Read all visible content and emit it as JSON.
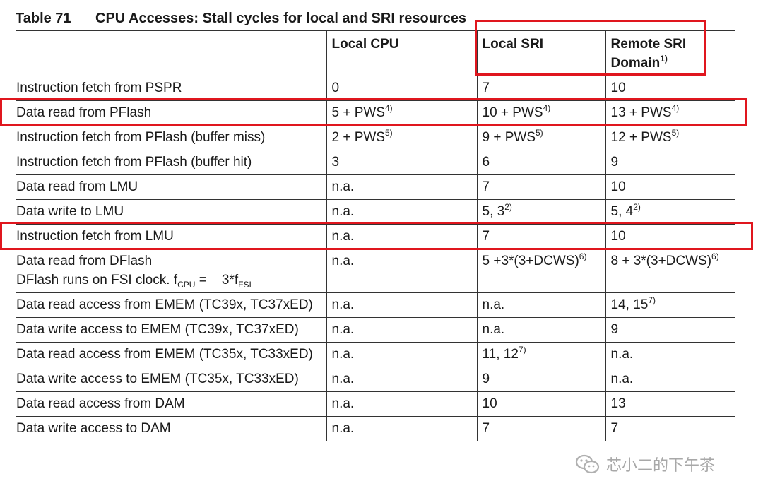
{
  "caption": {
    "table_id": "Table 71",
    "title": "CPU Accesses: Stall cycles for local and SRI resources"
  },
  "table": {
    "headers": {
      "col0": "",
      "col1": "Local CPU",
      "col2": "Local SRI",
      "col3_line1": "Remote SRI",
      "col3_line2": "Domain",
      "col3_footnote": "1)"
    },
    "rows": [
      {
        "c0": "Instruction fetch from PSPR",
        "c1": "0",
        "c2": "7",
        "c3": "10",
        "c1_fn": "",
        "c2_fn": "",
        "c3_fn": ""
      },
      {
        "c0": "Data read from PFlash",
        "c1": "5 + PWS",
        "c1_fn": "4)",
        "c2": "10 + PWS",
        "c2_fn": "4)",
        "c3": "13 + PWS",
        "c3_fn": "4)"
      },
      {
        "c0": "Instruction fetch from PFlash (buffer miss)",
        "c1": "2 + PWS",
        "c1_fn": "5)",
        "c2": "9 + PWS",
        "c2_fn": "5)",
        "c3": "12 + PWS",
        "c3_fn": "5)"
      },
      {
        "c0": "Instruction fetch from PFlash (buffer hit)",
        "c1": "3",
        "c1_fn": "",
        "c2": "6",
        "c2_fn": "",
        "c3": "9",
        "c3_fn": ""
      },
      {
        "c0": "Data read from LMU",
        "c1": "n.a.",
        "c1_fn": "",
        "c2": "7",
        "c2_fn": "",
        "c3": "10",
        "c3_fn": ""
      },
      {
        "c0": "Data write to LMU",
        "c1": "n.a.",
        "c1_fn": "",
        "c2": "5, 3",
        "c2_fn": "2)",
        "c3": "5, 4",
        "c3_fn": "2)"
      },
      {
        "c0": "Instruction fetch from LMU",
        "c1": "n.a.",
        "c1_fn": "",
        "c2": "7",
        "c2_fn": "",
        "c3": "10",
        "c3_fn": ""
      },
      {
        "c0": "Data read from DFlash",
        "c0_line2": {
          "text_a": "DFlash runs on FSI clock. f",
          "sub_a": "CPU",
          "text_b": " =    3*f",
          "sub_b": "FSI"
        },
        "c1": "n.a.",
        "c1_fn": "",
        "c2": "5 +3*(3+DCWS)",
        "c2_fn": "6)",
        "c3": "8 + 3*(3+DCWS)",
        "c3_fn": "6)"
      },
      {
        "c0": "Data read access from EMEM (TC39x, TC37xED)",
        "c1": "n.a.",
        "c1_fn": "",
        "c2": "n.a.",
        "c2_fn": "",
        "c3": "14, 15",
        "c3_fn": "7)"
      },
      {
        "c0": "Data write access to EMEM (TC39x, TC37xED)",
        "c1": "n.a.",
        "c1_fn": "",
        "c2": "n.a.",
        "c2_fn": "",
        "c3": "9",
        "c3_fn": ""
      },
      {
        "c0": "Data read access from EMEM (TC35x, TC33xED)",
        "c1": "n.a.",
        "c1_fn": "",
        "c2": "11, 12",
        "c2_fn": "7)",
        "c3": "n.a.",
        "c3_fn": ""
      },
      {
        "c0": "Data write access to EMEM (TC35x, TC33xED)",
        "c1": "n.a.",
        "c1_fn": "",
        "c2": "9",
        "c2_fn": "",
        "c3": "n.a.",
        "c3_fn": ""
      },
      {
        "c0": "Data read access from DAM",
        "c1": "n.a.",
        "c1_fn": "",
        "c2": "10",
        "c2_fn": "",
        "c3": "13",
        "c3_fn": ""
      },
      {
        "c0": "Data write access to DAM",
        "c1": "n.a.",
        "c1_fn": "",
        "c2": "7",
        "c2_fn": "",
        "c3": "7",
        "c3_fn": ""
      }
    ]
  },
  "highlight": {
    "color": "#e0161e"
  },
  "watermark": {
    "text": "芯小二的下午茶",
    "icon": "wechat-icon"
  }
}
